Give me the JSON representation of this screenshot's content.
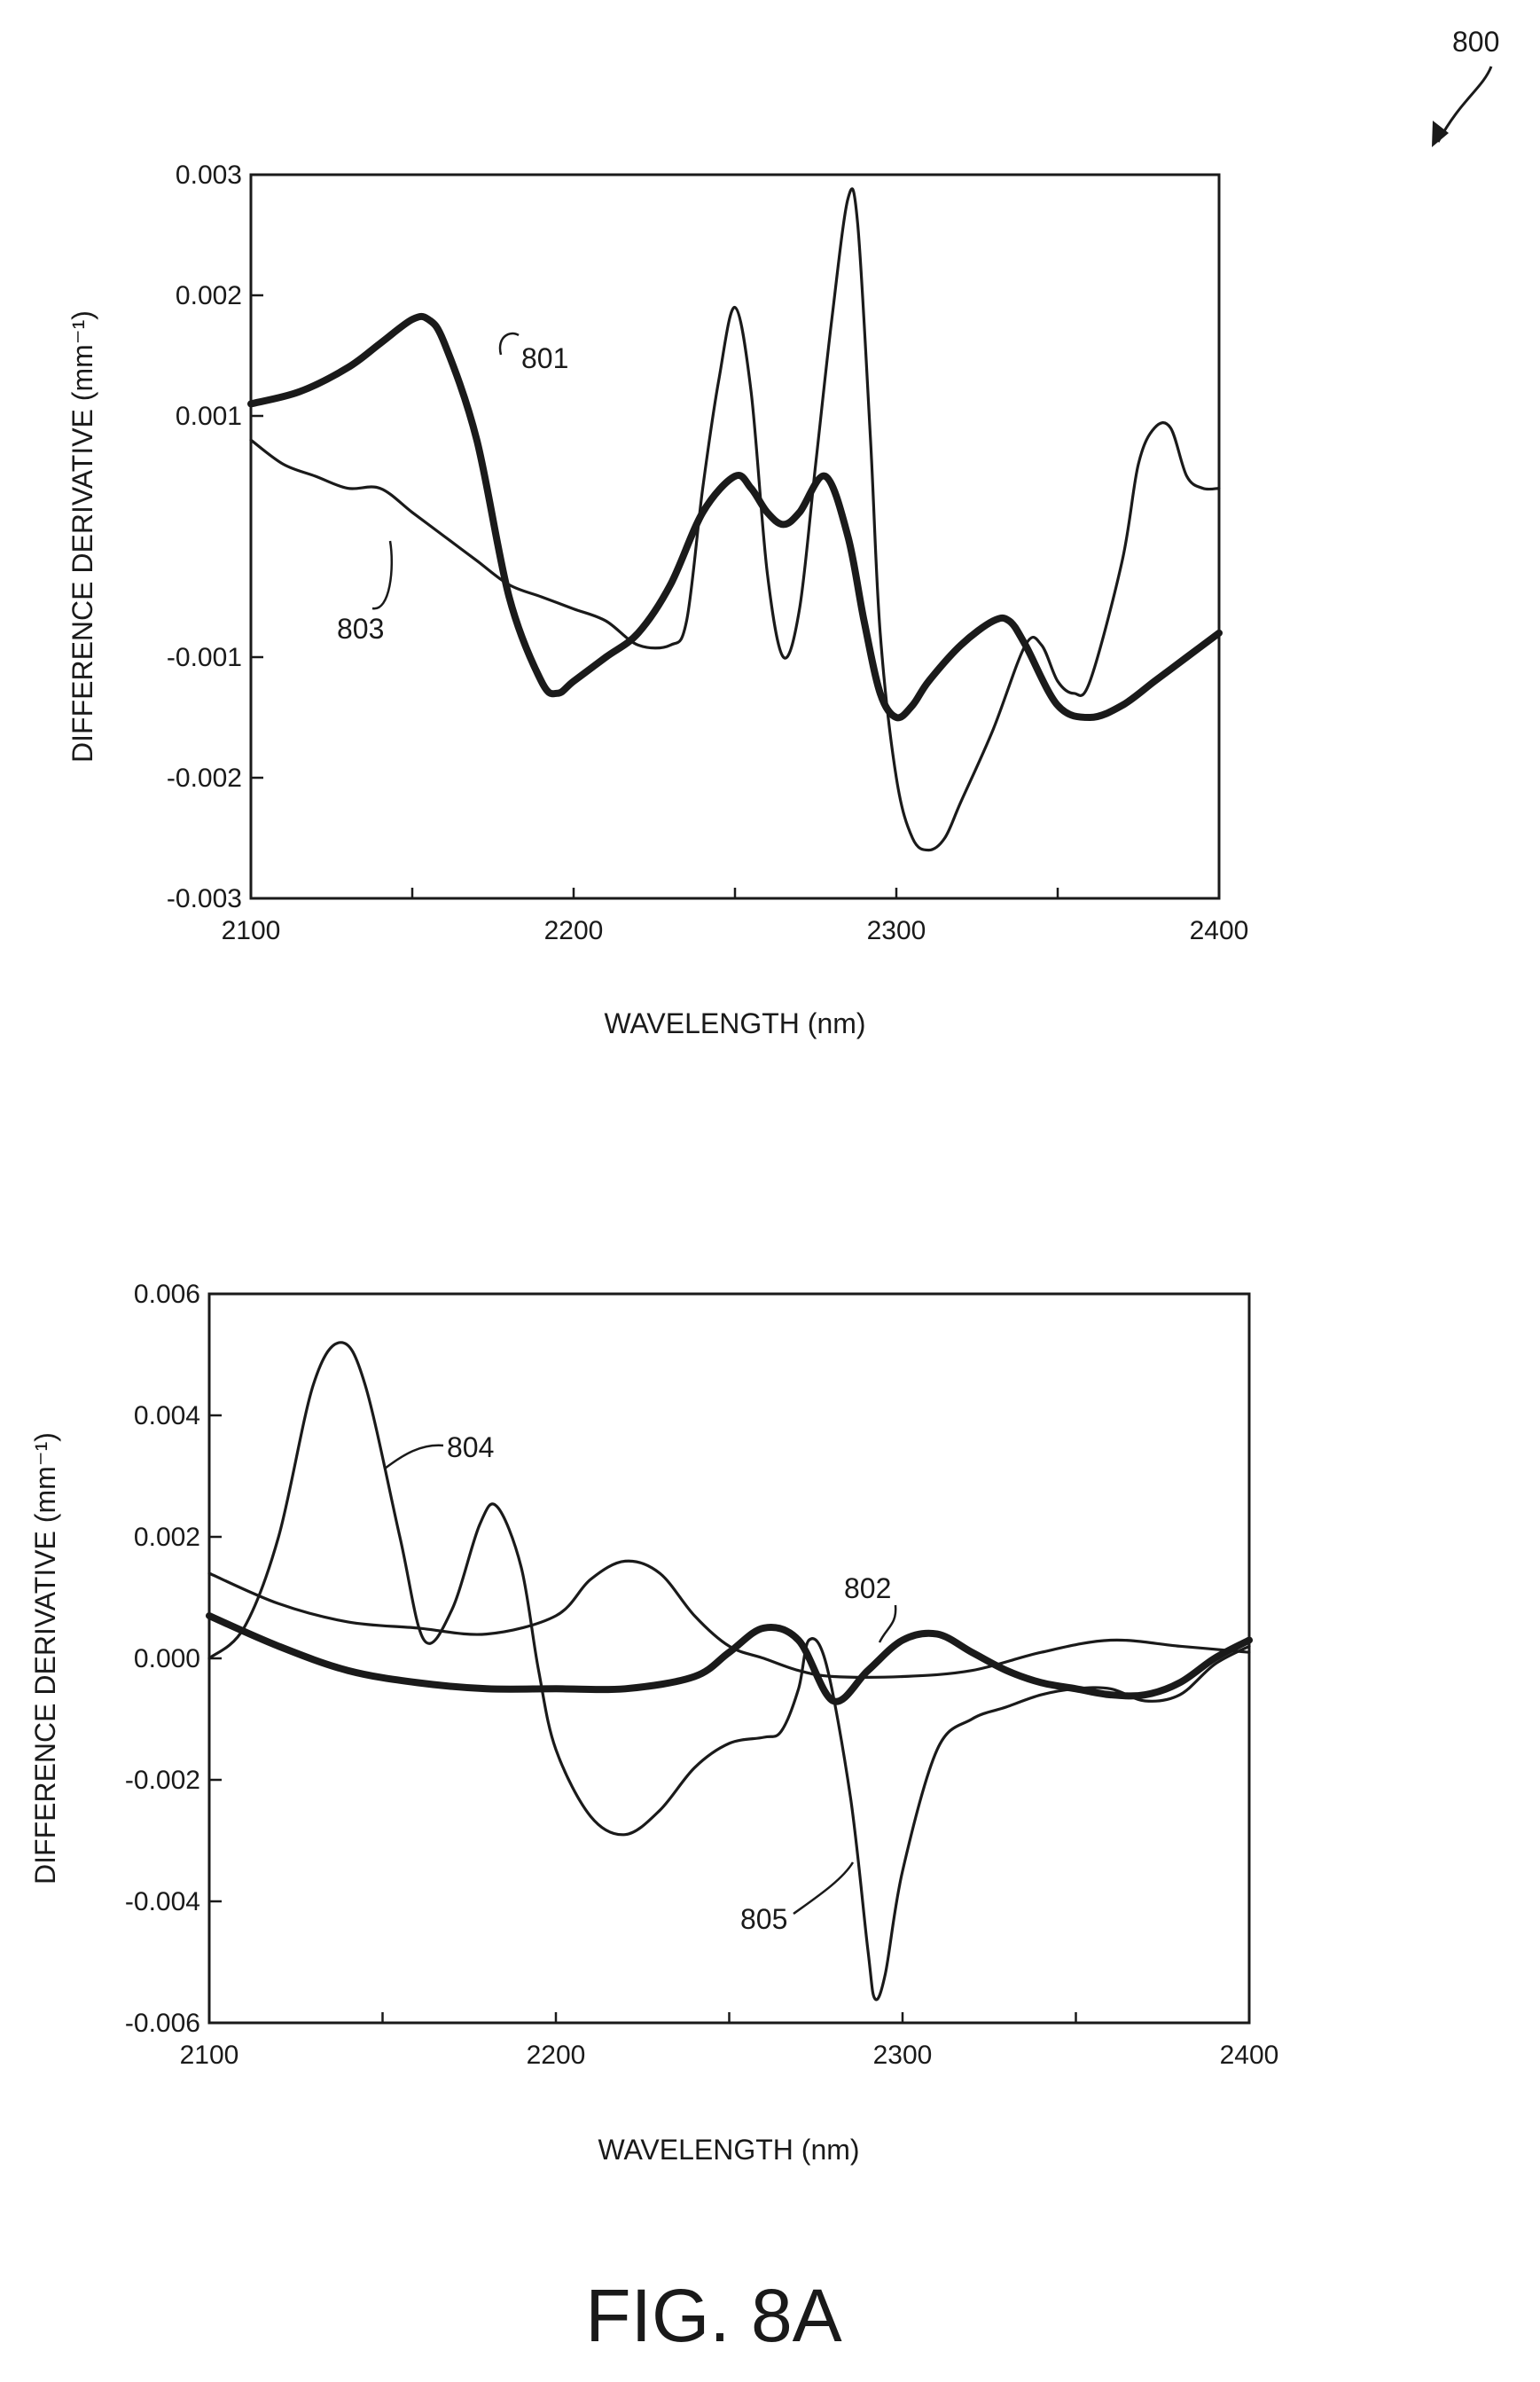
{
  "figure": {
    "ref_label": "800",
    "caption": "FIG. 8A"
  },
  "chart_data": [
    {
      "type": "line",
      "xlabel": "WAVELENGTH (nm)",
      "ylabel": "DIFFERENCE DERIVATIVE (mm⁻¹)",
      "xlim": [
        2100,
        2400
      ],
      "ylim": [
        -0.003,
        0.003
      ],
      "xticks": [
        "2100",
        "2200",
        "2300",
        "2400"
      ],
      "yticks": [
        "-0.003",
        "-0.002",
        "-0.001",
        "0.001",
        "0.002",
        "0.003"
      ],
      "ytick_values": [
        -0.003,
        -0.002,
        -0.001,
        0.001,
        0.002,
        0.003
      ],
      "grid": false,
      "series": [
        {
          "name": "801",
          "stroke": "heavy",
          "x": [
            2100,
            2115,
            2130,
            2140,
            2150,
            2155,
            2160,
            2170,
            2180,
            2190,
            2195,
            2200,
            2210,
            2220,
            2230,
            2240,
            2250,
            2255,
            2260,
            2265,
            2270,
            2278,
            2285,
            2290,
            2295,
            2300,
            2305,
            2310,
            2320,
            2330,
            2335,
            2340,
            2350,
            2360,
            2370,
            2380,
            2390,
            2400
          ],
          "y": [
            0.0011,
            0.0012,
            0.0014,
            0.0016,
            0.0018,
            0.0018,
            0.0016,
            0.0008,
            -0.0005,
            -0.0012,
            -0.0013,
            -0.0012,
            -0.001,
            -0.0008,
            -0.0004,
            0.0002,
            0.0005,
            0.0004,
            0.0002,
            0.0001,
            0.0002,
            0.0005,
            0.0,
            -0.0007,
            -0.0013,
            -0.0015,
            -0.0014,
            -0.0012,
            -0.0009,
            -0.0007,
            -0.0007,
            -0.0009,
            -0.0014,
            -0.0015,
            -0.0014,
            -0.0012,
            -0.001,
            -0.0008
          ]
        },
        {
          "name": "803",
          "stroke": "thin",
          "x": [
            2100,
            2110,
            2120,
            2130,
            2140,
            2150,
            2160,
            2170,
            2180,
            2190,
            2200,
            2210,
            2220,
            2230,
            2235,
            2240,
            2245,
            2250,
            2255,
            2260,
            2265,
            2270,
            2275,
            2280,
            2285,
            2288,
            2292,
            2295,
            2300,
            2305,
            2310,
            2315,
            2320,
            2330,
            2340,
            2345,
            2350,
            2355,
            2360,
            2370,
            2375,
            2380,
            2385,
            2390,
            2395,
            2400
          ],
          "y": [
            0.0008,
            0.0006,
            0.0005,
            0.0004,
            0.0004,
            0.0002,
            0.0,
            -0.0002,
            -0.0004,
            -0.0005,
            -0.0006,
            -0.0007,
            -0.0009,
            -0.0009,
            -0.0007,
            0.0004,
            0.0013,
            0.0019,
            0.0012,
            -0.0003,
            -0.001,
            -0.0006,
            0.0006,
            0.0018,
            0.0028,
            0.0026,
            0.0008,
            -0.0008,
            -0.002,
            -0.0025,
            -0.0026,
            -0.0025,
            -0.0022,
            -0.0016,
            -0.0009,
            -0.0009,
            -0.0012,
            -0.0013,
            -0.0012,
            -0.0002,
            0.0006,
            0.0009,
            0.0009,
            0.0005,
            0.0004,
            0.0004
          ]
        }
      ]
    },
    {
      "type": "line",
      "xlabel": "WAVELENGTH (nm)",
      "ylabel": "DIFFERENCE DERIVATIVE (mm⁻¹)",
      "xlim": [
        2100,
        2400
      ],
      "ylim": [
        -0.006,
        0.006
      ],
      "xticks": [
        "2100",
        "2200",
        "2300",
        "2400"
      ],
      "yticks": [
        "-0.006",
        "-0.004",
        "-0.002",
        "0.000",
        "0.002",
        "0.004",
        "0.006"
      ],
      "ytick_values": [
        -0.006,
        -0.004,
        -0.002,
        0.0,
        0.002,
        0.004,
        0.006
      ],
      "grid": false,
      "series": [
        {
          "name": "802",
          "stroke": "heavy",
          "x": [
            2100,
            2120,
            2140,
            2160,
            2180,
            2200,
            2220,
            2240,
            2250,
            2260,
            2270,
            2280,
            2290,
            2300,
            2310,
            2320,
            2330,
            2340,
            2350,
            2360,
            2370,
            2380,
            2390,
            2400
          ],
          "y": [
            0.0007,
            0.0002,
            -0.0002,
            -0.0004,
            -0.0005,
            -0.0005,
            -0.0005,
            -0.0003,
            0.0001,
            0.0005,
            0.0003,
            -0.0007,
            -0.0002,
            0.0003,
            0.0004,
            0.0001,
            -0.0002,
            -0.0004,
            -0.0005,
            -0.0006,
            -0.0006,
            -0.0004,
            0.0,
            0.0003
          ]
        },
        {
          "name": "804",
          "stroke": "thin",
          "x": [
            2100,
            2110,
            2120,
            2130,
            2138,
            2145,
            2155,
            2162,
            2170,
            2178,
            2183,
            2190,
            2195,
            2200,
            2210,
            2220,
            2230,
            2240,
            2250,
            2260,
            2265,
            2270,
            2273,
            2278,
            2285,
            2290,
            2292,
            2295,
            2300,
            2310,
            2320,
            2330,
            2340,
            2350,
            2360,
            2370,
            2380,
            2390,
            2400
          ],
          "y": [
            0.0,
            0.0005,
            0.002,
            0.0045,
            0.0052,
            0.0045,
            0.002,
            0.0003,
            0.0008,
            0.0022,
            0.0025,
            0.0015,
            -0.0002,
            -0.0015,
            -0.0026,
            -0.0029,
            -0.0025,
            -0.0018,
            -0.0014,
            -0.0013,
            -0.0012,
            -0.0005,
            0.0003,
            -0.0001,
            -0.0023,
            -0.0048,
            -0.0056,
            -0.0052,
            -0.0035,
            -0.0015,
            -0.001,
            -0.0008,
            -0.0006,
            -0.0005,
            -0.0005,
            -0.0007,
            -0.0006,
            -0.0001,
            0.0002
          ]
        },
        {
          "name": "805",
          "stroke": "thin",
          "x": [
            2100,
            2120,
            2140,
            2160,
            2180,
            2200,
            2210,
            2220,
            2230,
            2240,
            2250,
            2260,
            2270,
            2280,
            2300,
            2320,
            2340,
            2360,
            2380,
            2400
          ],
          "y": [
            0.0014,
            0.0009,
            0.0006,
            0.0005,
            0.0004,
            0.0007,
            0.0013,
            0.0016,
            0.0014,
            0.0007,
            0.0002,
            0.0,
            -0.0002,
            -0.0003,
            -0.0003,
            -0.0002,
            0.0001,
            0.0003,
            0.0002,
            0.0001
          ]
        }
      ]
    }
  ]
}
